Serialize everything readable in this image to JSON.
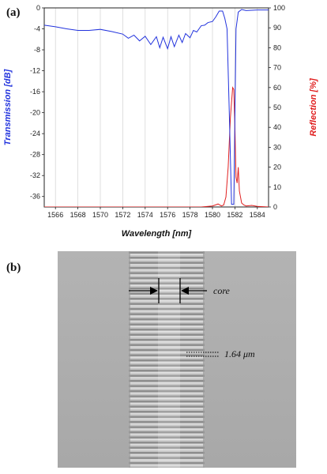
{
  "panel_a": {
    "label": "(a)"
  },
  "panel_b": {
    "label": "(b)",
    "annotations": {
      "core": "core",
      "period": "1.64 μm"
    }
  },
  "colors": {
    "transmission": "#2233dd",
    "reflection": "#e02020"
  },
  "chart_data": {
    "type": "line",
    "xlabel": "Wavelength [nm]",
    "ylabel_left": "Transmission [dB]",
    "ylabel_right": "Reflection [%]",
    "xlim": [
      1565,
      1585
    ],
    "ylim_left": [
      -38,
      0
    ],
    "ylim_right": [
      0,
      100
    ],
    "x_ticks": [
      1566,
      1568,
      1570,
      1572,
      1574,
      1576,
      1578,
      1580,
      1582,
      1584
    ],
    "y_left_ticks": [
      0,
      -4,
      -8,
      -12,
      -16,
      -20,
      -24,
      -28,
      -32,
      -36
    ],
    "y_right_ticks": [
      0,
      10,
      20,
      30,
      40,
      50,
      60,
      70,
      80,
      90,
      100
    ],
    "grid": "vertical",
    "series": [
      {
        "name": "Transmission",
        "axis": "left",
        "x": [
          1565,
          1566,
          1567,
          1568,
          1569,
          1570,
          1571,
          1572,
          1572.5,
          1573,
          1573.5,
          1574,
          1574.5,
          1575,
          1575.3,
          1575.6,
          1576,
          1576.3,
          1576.6,
          1577,
          1577.3,
          1577.6,
          1578,
          1578.3,
          1578.6,
          1579,
          1579.3,
          1579.6,
          1580,
          1580.3,
          1580.6,
          1580.9,
          1581.1,
          1581.3,
          1581.5,
          1581.7,
          1581.9,
          1582.1,
          1582.3,
          1582.6,
          1583,
          1584,
          1585
        ],
        "y": [
          -3.3,
          -3.6,
          -4.0,
          -4.3,
          -4.3,
          -4.1,
          -4.5,
          -5.0,
          -5.8,
          -5.2,
          -6.3,
          -5.4,
          -7.0,
          -5.5,
          -7.6,
          -5.6,
          -7.8,
          -5.5,
          -7.4,
          -5.2,
          -6.6,
          -4.9,
          -5.7,
          -4.3,
          -4.6,
          -3.4,
          -3.3,
          -2.8,
          -2.6,
          -1.7,
          -0.6,
          -0.6,
          -2.0,
          -4.0,
          -20.0,
          -37.5,
          -37.5,
          -4.0,
          -0.8,
          -0.3,
          -0.5,
          -0.4,
          -0.4
        ]
      },
      {
        "name": "Reflection",
        "axis": "right",
        "x": [
          1565,
          1570,
          1575,
          1579,
          1580,
          1580.5,
          1580.8,
          1581.0,
          1581.2,
          1581.4,
          1581.6,
          1581.8,
          1581.9,
          1582.0,
          1582.1,
          1582.2,
          1582.3,
          1582.4,
          1582.6,
          1582.8,
          1583,
          1583.5,
          1584,
          1585
        ],
        "y": [
          0,
          0,
          0,
          0,
          0.5,
          1.5,
          0.5,
          1.0,
          5.0,
          20.0,
          45.0,
          60.0,
          59.0,
          40.0,
          15.0,
          12.0,
          20.0,
          8.0,
          2.0,
          1.0,
          0.5,
          0.8,
          0.3,
          0
        ]
      }
    ]
  }
}
